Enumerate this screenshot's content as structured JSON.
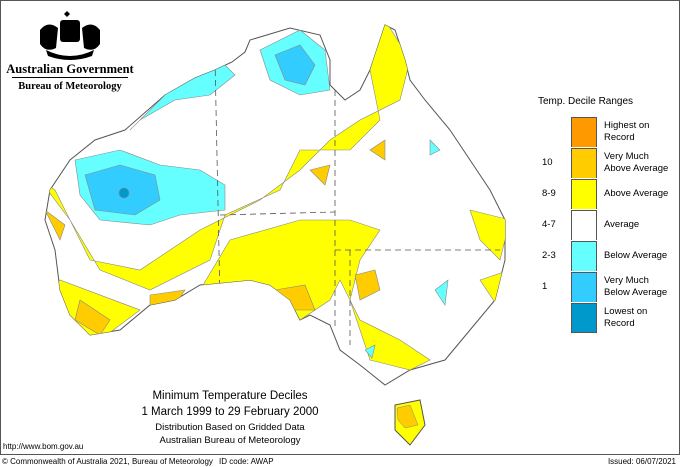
{
  "header": {
    "org": "Australian Government",
    "bureau": "Bureau of Meteorology",
    "logo": "coat-of-arms"
  },
  "map_title": {
    "line1": "Minimum Temperature Deciles",
    "line2": "1 March 1999 to 29 February 2000",
    "line3": "Distribution Based on Gridded Data",
    "line4": "Australian Bureau of Meteorology"
  },
  "legend": {
    "title": "Temp. Decile Ranges",
    "items": [
      {
        "code": "",
        "label1": "Highest on",
        "label2": "Record",
        "color": "#ff9900"
      },
      {
        "code": "10",
        "label1": "Very Much",
        "label2": "Above Average",
        "color": "#ffcc00"
      },
      {
        "code": "8-9",
        "label1": "Above Average",
        "label2": "",
        "color": "#ffff00"
      },
      {
        "code": "4-7",
        "label1": "Average",
        "label2": "",
        "color": "#ffffff"
      },
      {
        "code": "2-3",
        "label1": "Below Average",
        "label2": "",
        "color": "#66ffff"
      },
      {
        "code": "1",
        "label1": "Very Much",
        "label2": "Below Average",
        "color": "#33ccff"
      },
      {
        "code": "",
        "label1": "Lowest on",
        "label2": "Record",
        "color": "#0099cc"
      }
    ]
  },
  "url": "http://www.bom.gov.au",
  "footer": {
    "copyright": "© Commonwealth of Australia 2021, Bureau of Meteorology",
    "id_code": "ID code: AWAP",
    "issued": "Issued: 06/07/2021"
  }
}
